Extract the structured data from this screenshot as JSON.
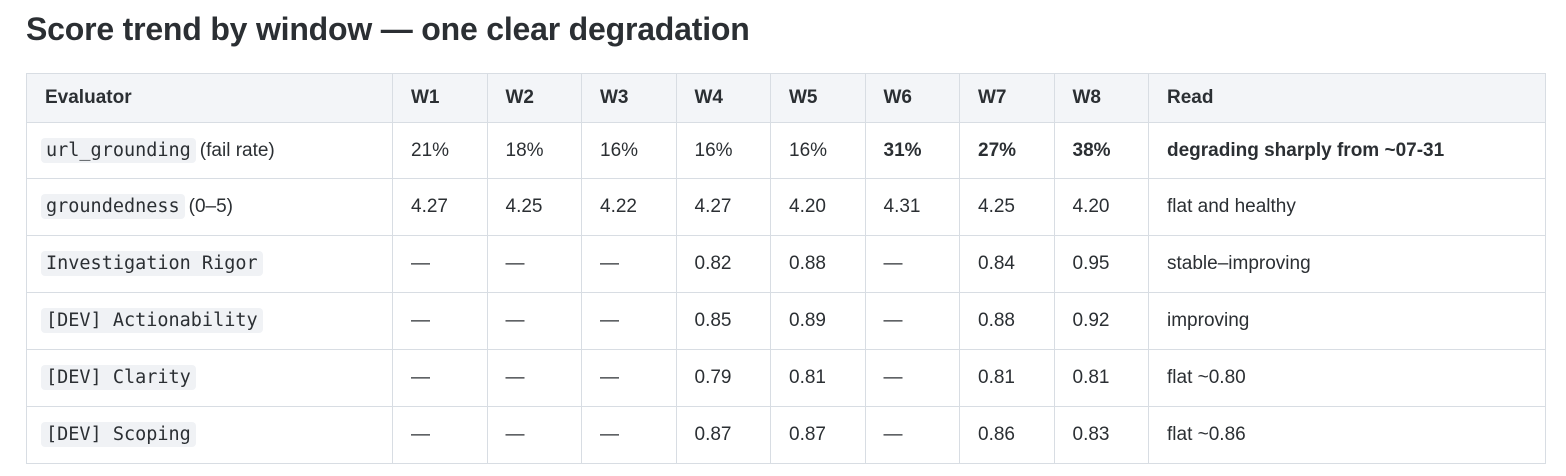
{
  "title": "Score trend by window — one clear degradation",
  "table": {
    "headers": [
      "Evaluator",
      "W1",
      "W2",
      "W3",
      "W4",
      "W5",
      "W6",
      "W7",
      "W8",
      "Read"
    ],
    "rows": [
      {
        "evaluator": "url_grounding",
        "suffix": "(fail rate)",
        "values": [
          "21%",
          "18%",
          "16%",
          "16%",
          "16%",
          "31%",
          "27%",
          "38%"
        ],
        "bold_values": [
          false,
          false,
          false,
          false,
          false,
          true,
          true,
          true
        ],
        "read": "degrading sharply from ~07-31",
        "read_bold": true
      },
      {
        "evaluator": "groundedness",
        "suffix": "(0–5)",
        "values": [
          "4.27",
          "4.25",
          "4.22",
          "4.27",
          "4.20",
          "4.31",
          "4.25",
          "4.20"
        ],
        "bold_values": [
          false,
          false,
          false,
          false,
          false,
          false,
          false,
          false
        ],
        "read": "flat and healthy",
        "read_bold": false
      },
      {
        "evaluator": "Investigation Rigor",
        "suffix": "",
        "values": [
          "—",
          "—",
          "—",
          "0.82",
          "0.88",
          "—",
          "0.84",
          "0.95"
        ],
        "bold_values": [
          false,
          false,
          false,
          false,
          false,
          false,
          false,
          false
        ],
        "read": "stable–improving",
        "read_bold": false
      },
      {
        "evaluator": "[DEV] Actionability",
        "suffix": "",
        "values": [
          "—",
          "—",
          "—",
          "0.85",
          "0.89",
          "—",
          "0.88",
          "0.92"
        ],
        "bold_values": [
          false,
          false,
          false,
          false,
          false,
          false,
          false,
          false
        ],
        "read": "improving",
        "read_bold": false
      },
      {
        "evaluator": "[DEV] Clarity",
        "suffix": "",
        "values": [
          "—",
          "—",
          "—",
          "0.79",
          "0.81",
          "—",
          "0.81",
          "0.81"
        ],
        "bold_values": [
          false,
          false,
          false,
          false,
          false,
          false,
          false,
          false
        ],
        "read": "flat ~0.80",
        "read_bold": false
      },
      {
        "evaluator": "[DEV] Scoping",
        "suffix": "",
        "values": [
          "—",
          "—",
          "—",
          "0.87",
          "0.87",
          "—",
          "0.86",
          "0.83"
        ],
        "bold_values": [
          false,
          false,
          false,
          false,
          false,
          false,
          false,
          false
        ],
        "read": "flat ~0.86",
        "read_bold": false
      }
    ]
  }
}
